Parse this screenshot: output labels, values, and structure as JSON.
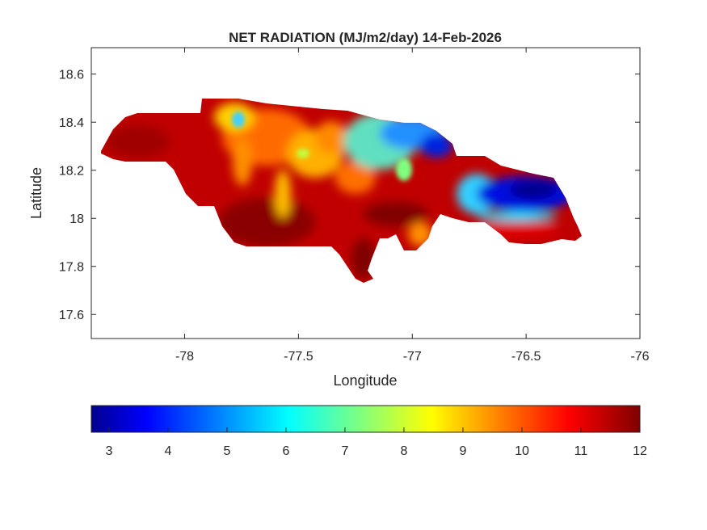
{
  "title": "NET RADIATION (MJ/m2/day) 14-Feb-2026",
  "xlabel": "Longitude",
  "ylabel": "Latitude",
  "xlim": [
    -78.41,
    -76
  ],
  "ylim": [
    17.5,
    18.71
  ],
  "xticks": [
    {
      "v": -78,
      "label": "-78"
    },
    {
      "v": -77.5,
      "label": "-77.5"
    },
    {
      "v": -77,
      "label": "-77"
    },
    {
      "v": -76.5,
      "label": "-76.5"
    },
    {
      "v": -76,
      "label": "-76"
    }
  ],
  "yticks": [
    {
      "v": 17.6,
      "label": "17.6"
    },
    {
      "v": 17.8,
      "label": "17.8"
    },
    {
      "v": 18,
      "label": "18"
    },
    {
      "v": 18.2,
      "label": "18.2"
    },
    {
      "v": 18.4,
      "label": "18.4"
    },
    {
      "v": 18.6,
      "label": "18.6"
    }
  ],
  "colorbar": {
    "colormap": "jet",
    "clim": [
      2.7,
      12
    ],
    "ticks": [
      {
        "v": 3,
        "label": "3"
      },
      {
        "v": 4,
        "label": "4"
      },
      {
        "v": 5,
        "label": "5"
      },
      {
        "v": 6,
        "label": "6"
      },
      {
        "v": 7,
        "label": "7"
      },
      {
        "v": 8,
        "label": "8"
      },
      {
        "v": 9,
        "label": "9"
      },
      {
        "v": 10,
        "label": "10"
      },
      {
        "v": 11,
        "label": "11"
      },
      {
        "v": 12,
        "label": "12"
      }
    ],
    "colors": [
      "#00008f",
      "#0000ff",
      "#00ffff",
      "#ffff00",
      "#ff0000",
      "#800000"
    ]
  }
}
